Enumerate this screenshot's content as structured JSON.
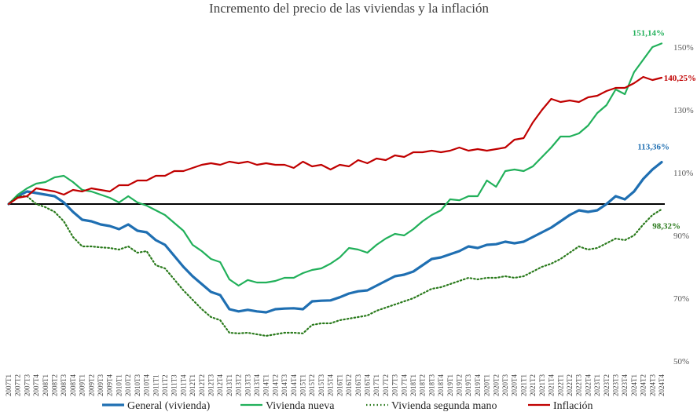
{
  "chart_data": {
    "type": "line",
    "title": "Incremento del precio de las viviendas y la inflación",
    "ylim": [
      50,
      156
    ],
    "baseline": 100,
    "yticks": [
      50,
      70,
      90,
      110,
      130,
      150
    ],
    "ytick_labels": [
      "50%",
      "70%",
      "90%",
      "110%",
      "130%",
      "150%"
    ],
    "x": [
      "2007T1",
      "2007T2",
      "2007T3",
      "2007T4",
      "2008T1",
      "2008T2",
      "2008T3",
      "2008T4",
      "2009T1",
      "2009T2",
      "2009T3",
      "2009T4",
      "2010T1",
      "2010T2",
      "2010T3",
      "2010T4",
      "2011T1",
      "2011T2",
      "2011T3",
      "2011T4",
      "2012T1",
      "2012T2",
      "2012T3",
      "2012T4",
      "2013T1",
      "2013T2",
      "2013T3",
      "2013T4",
      "2014T1",
      "2014T2",
      "2014T3",
      "2014T4",
      "2015T1",
      "2015T2",
      "2015T3",
      "2015T4",
      "2016T1",
      "2016T2",
      "2016T3",
      "2016T4",
      "2017T1",
      "2017T2",
      "2017T3",
      "2017T4",
      "2018T1",
      "2018T2",
      "2018T3",
      "2018T4",
      "2019T1",
      "2019T2",
      "2019T3",
      "2019T4",
      "2020T1",
      "2020T2",
      "2020T3",
      "2020T4",
      "2021T1",
      "2021T2",
      "2021T3",
      "2021T4",
      "2022T1",
      "2022T2",
      "2022T3",
      "2022T4",
      "2023T1",
      "2023T2",
      "2023T3",
      "2023T4",
      "2024T1",
      "2024T2",
      "2024T3",
      "2024T4"
    ],
    "series": [
      {
        "name": "General (vivienda)",
        "color": "#1f6fb2",
        "style": "solid",
        "end_label": "113,36%",
        "values": [
          100,
          102.5,
          104,
          103.5,
          103,
          102.5,
          100.5,
          97.5,
          95,
          94.5,
          93.5,
          93,
          92,
          93.5,
          91.5,
          91,
          88.5,
          87,
          83.5,
          80,
          77,
          74.5,
          72,
          71,
          66.5,
          65.8,
          66.3,
          65.8,
          65.5,
          66.5,
          66.7,
          66.8,
          66.5,
          69,
          69.2,
          69.3,
          70.3,
          71.5,
          72.2,
          72.5,
          74,
          75.5,
          77,
          77.5,
          78.5,
          80.5,
          82.5,
          83,
          84,
          85,
          86.5,
          86,
          87,
          87.2,
          88,
          87.5,
          88,
          89.5,
          91,
          92.5,
          94.5,
          96.5,
          98,
          97.5,
          98,
          100,
          102.5,
          101.5,
          104,
          108,
          111,
          113.36
        ]
      },
      {
        "name": "Vivienda nueva",
        "color": "#21b05a",
        "style": "solid",
        "end_label": "151,14%",
        "values": [
          100,
          103,
          105,
          106.5,
          107,
          108.5,
          109,
          107,
          104.5,
          104,
          103,
          102,
          100.5,
          102.5,
          100.5,
          99.5,
          98,
          96.5,
          94,
          91.5,
          87,
          85,
          82.5,
          81.5,
          76,
          74,
          75.8,
          75,
          75,
          75.5,
          76.5,
          76.5,
          78,
          79,
          79.5,
          81,
          83,
          86,
          85.5,
          84.5,
          87,
          89,
          90.5,
          90,
          92,
          94.5,
          96.5,
          98,
          101.5,
          101.2,
          102.5,
          102.5,
          107.5,
          105.5,
          110.5,
          111,
          110.5,
          112,
          115,
          118,
          121.5,
          121.5,
          122.5,
          125,
          129,
          131.5,
          136.5,
          135,
          142,
          146,
          150,
          151.14
        ]
      },
      {
        "name": "Vivienda segunda mano",
        "color": "#2a7a1c",
        "style": "dotted",
        "end_label": "98,32%",
        "values": [
          100,
          102.5,
          102.5,
          100,
          99,
          97.5,
          94.5,
          89.5,
          86.5,
          86.5,
          86.2,
          86,
          85.5,
          86.5,
          84.5,
          85,
          80.5,
          79.5,
          76,
          72.5,
          69.5,
          66.5,
          64,
          63,
          59,
          58.8,
          59,
          58.5,
          58,
          58.5,
          59,
          59,
          58.8,
          61.5,
          62,
          62,
          63,
          63.5,
          64,
          64.5,
          66,
          67,
          68,
          69,
          70,
          71.5,
          73,
          73.5,
          74.5,
          75.5,
          76.5,
          76,
          76.5,
          76.5,
          77,
          76.5,
          77,
          78.5,
          80,
          81,
          82.5,
          84.5,
          86.5,
          85.5,
          86,
          87.5,
          89,
          88.5,
          90,
          93.5,
          96.5,
          98.32
        ]
      },
      {
        "name": "Inflación",
        "color": "#c00000",
        "style": "solid",
        "end_label": "140,25%",
        "values": [
          100,
          102,
          102.5,
          105,
          104.5,
          104,
          103,
          104.5,
          104,
          105,
          104.5,
          104,
          106,
          106,
          107.5,
          107.5,
          109,
          109,
          110.5,
          110.5,
          111.5,
          112.5,
          113,
          112.5,
          113.5,
          113,
          113.5,
          112.5,
          113,
          112.5,
          112.5,
          111.5,
          113.5,
          112,
          112.5,
          111,
          112.5,
          112,
          114,
          113,
          114.5,
          114,
          115.5,
          115,
          116.5,
          116.5,
          117,
          116.5,
          117,
          118,
          117,
          117.5,
          117,
          117.5,
          118,
          120.5,
          121,
          126,
          130,
          133.5,
          132.5,
          133,
          132.5,
          134,
          134.5,
          136,
          137,
          137,
          138.5,
          140.5,
          139.5,
          140.25
        ]
      }
    ]
  }
}
